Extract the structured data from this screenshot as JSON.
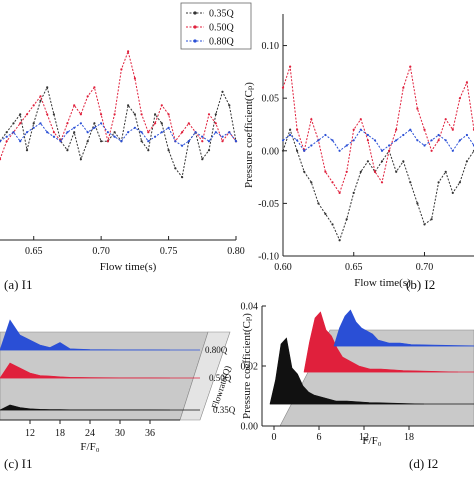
{
  "legend": {
    "items": [
      {
        "label": "0.35Q",
        "color": "#333333",
        "marker": "square"
      },
      {
        "label": "0.50Q",
        "color": "#e0203c",
        "marker": "circle"
      },
      {
        "label": "0.80Q",
        "color": "#2a4fd6",
        "marker": "triangle"
      }
    ]
  },
  "chart_data": [
    {
      "id": "I1",
      "type": "line",
      "caption": "(a) I1",
      "xlabel": "Flow time(s)",
      "ylabel": "",
      "xlim": [
        0.625,
        0.8
      ],
      "ylim": [
        -0.11,
        0.135
      ],
      "xticks": [
        "0.65",
        "0.70",
        "0.75",
        "0.80"
      ],
      "xtick_values": [
        0.65,
        0.7,
        0.75,
        0.8
      ],
      "series": [
        {
          "name": "0.35Q",
          "color": "#333333",
          "x": [
            0.625,
            0.63,
            0.635,
            0.64,
            0.645,
            0.65,
            0.655,
            0.66,
            0.665,
            0.67,
            0.675,
            0.68,
            0.685,
            0.69,
            0.695,
            0.7,
            0.705,
            0.71,
            0.715,
            0.72,
            0.725,
            0.73,
            0.735,
            0.74,
            0.745,
            0.75,
            0.755,
            0.76,
            0.765,
            0.77,
            0.775,
            0.78,
            0.785,
            0.79,
            0.795,
            0.8
          ],
          "y": [
            0.0,
            0.01,
            0.02,
            0.03,
            -0.01,
            0.02,
            0.045,
            0.06,
            0.03,
            0.0,
            -0.01,
            0.01,
            -0.02,
            0.0,
            0.02,
            0.0,
            0.0,
            0.01,
            0.0,
            0.04,
            0.03,
            0.0,
            -0.01,
            0.03,
            0.02,
            -0.01,
            -0.03,
            -0.04,
            0.0,
            0.01,
            -0.02,
            -0.01,
            0.03,
            0.055,
            0.04,
            0.0
          ]
        },
        {
          "name": "0.50Q",
          "color": "#e0203c",
          "x": [
            0.625,
            0.63,
            0.635,
            0.64,
            0.645,
            0.65,
            0.655,
            0.66,
            0.665,
            0.67,
            0.675,
            0.68,
            0.685,
            0.69,
            0.695,
            0.7,
            0.705,
            0.71,
            0.715,
            0.72,
            0.725,
            0.73,
            0.735,
            0.74,
            0.745,
            0.75,
            0.755,
            0.76,
            0.765,
            0.77,
            0.775,
            0.78,
            0.785,
            0.79,
            0.795,
            0.8
          ],
          "y": [
            -0.02,
            0.0,
            0.01,
            0.02,
            0.03,
            0.04,
            0.05,
            0.03,
            0.01,
            0.0,
            0.02,
            0.04,
            0.03,
            0.05,
            0.06,
            0.03,
            0.0,
            0.03,
            0.08,
            0.1,
            0.07,
            0.03,
            0.01,
            0.02,
            0.04,
            0.03,
            0.0,
            0.01,
            0.02,
            0.01,
            0.0,
            0.03,
            0.02,
            0.0,
            0.01,
            0.0
          ]
        },
        {
          "name": "0.80Q",
          "color": "#2a4fd6",
          "x": [
            0.625,
            0.63,
            0.635,
            0.64,
            0.645,
            0.65,
            0.655,
            0.66,
            0.665,
            0.67,
            0.675,
            0.68,
            0.685,
            0.69,
            0.695,
            0.7,
            0.705,
            0.71,
            0.715,
            0.72,
            0.725,
            0.73,
            0.735,
            0.74,
            0.745,
            0.75,
            0.755,
            0.76,
            0.765,
            0.77,
            0.775,
            0.78,
            0.785,
            0.79,
            0.795,
            0.8
          ],
          "y": [
            0.0,
            0.005,
            0.01,
            0.0,
            0.01,
            0.015,
            0.02,
            0.01,
            0.005,
            0.0,
            0.01,
            0.015,
            0.02,
            0.01,
            0.015,
            0.02,
            0.01,
            0.005,
            0.0,
            0.01,
            0.015,
            0.01,
            0.0,
            0.005,
            0.01,
            0.015,
            0.0,
            -0.005,
            0.0,
            0.01,
            0.005,
            0.0,
            0.01,
            0.005,
            0.01,
            0.0
          ]
        }
      ]
    },
    {
      "id": "I2",
      "type": "line",
      "caption": "(b) I2",
      "xlabel": "Flow time(s)",
      "ylabel": "Pressure coefficient(C_p)",
      "xlim": [
        0.6,
        0.735
      ],
      "ylim": [
        -0.1,
        0.13
      ],
      "xticks": [
        "0.60",
        "0.65",
        "0.70"
      ],
      "xtick_values": [
        0.6,
        0.65,
        0.7
      ],
      "yticks": [
        "-0.10",
        "-0.05",
        "0.00",
        "0.05",
        "0.10"
      ],
      "ytick_values": [
        -0.1,
        -0.05,
        0.0,
        0.05,
        0.1
      ],
      "series": [
        {
          "name": "0.35Q",
          "color": "#333333",
          "x": [
            0.6,
            0.605,
            0.61,
            0.615,
            0.62,
            0.625,
            0.63,
            0.635,
            0.64,
            0.645,
            0.65,
            0.655,
            0.66,
            0.665,
            0.67,
            0.675,
            0.68,
            0.685,
            0.69,
            0.695,
            0.7,
            0.705,
            0.71,
            0.715,
            0.72,
            0.725,
            0.73,
            0.735
          ],
          "y": [
            0.0,
            0.02,
            0.0,
            -0.02,
            -0.03,
            -0.05,
            -0.06,
            -0.07,
            -0.085,
            -0.065,
            -0.04,
            -0.02,
            -0.01,
            -0.02,
            -0.01,
            0.0,
            -0.02,
            -0.01,
            -0.03,
            -0.05,
            -0.07,
            -0.065,
            -0.03,
            -0.02,
            -0.04,
            -0.03,
            -0.01,
            0.0
          ]
        },
        {
          "name": "0.50Q",
          "color": "#e0203c",
          "x": [
            0.6,
            0.605,
            0.61,
            0.615,
            0.62,
            0.625,
            0.63,
            0.635,
            0.64,
            0.645,
            0.65,
            0.655,
            0.66,
            0.665,
            0.67,
            0.675,
            0.68,
            0.685,
            0.69,
            0.695,
            0.7,
            0.705,
            0.71,
            0.715,
            0.72,
            0.725,
            0.73,
            0.735
          ],
          "y": [
            0.06,
            0.08,
            0.02,
            0.0,
            0.03,
            0.01,
            -0.02,
            -0.03,
            -0.04,
            -0.02,
            0.02,
            0.03,
            0.01,
            -0.02,
            -0.03,
            0.0,
            0.02,
            0.06,
            0.08,
            0.04,
            0.02,
            0.0,
            0.01,
            0.03,
            0.02,
            0.05,
            0.065,
            0.02
          ]
        },
        {
          "name": "0.80Q",
          "color": "#2a4fd6",
          "x": [
            0.6,
            0.605,
            0.61,
            0.615,
            0.62,
            0.625,
            0.63,
            0.635,
            0.64,
            0.645,
            0.65,
            0.655,
            0.66,
            0.665,
            0.67,
            0.675,
            0.68,
            0.685,
            0.69,
            0.695,
            0.7,
            0.705,
            0.71,
            0.715,
            0.72,
            0.725,
            0.73,
            0.735
          ],
          "y": [
            0.01,
            0.015,
            0.01,
            0.0,
            0.005,
            0.01,
            0.015,
            0.01,
            0.0,
            0.005,
            0.01,
            0.02,
            0.015,
            0.01,
            0.0,
            0.005,
            0.01,
            0.015,
            0.02,
            0.01,
            0.005,
            0.01,
            0.015,
            0.01,
            0.0,
            0.01,
            0.015,
            0.005
          ]
        }
      ]
    },
    {
      "id": "I1-spectrum",
      "type": "area",
      "caption": "(c) I1",
      "xlabel": "F/F_0",
      "zlabel": "Flowrate(Q)",
      "xlim": [
        8,
        40
      ],
      "xticks": [
        "12",
        "18",
        "24",
        "30",
        "36"
      ],
      "xtick_values": [
        12,
        18,
        24,
        30,
        36
      ],
      "series": [
        {
          "name": "0.35Q",
          "color": "#111111",
          "x": [
            8,
            10,
            12,
            14,
            16,
            18,
            20,
            24,
            30,
            36,
            40
          ],
          "y": [
            0.002,
            0.001,
            0.0005,
            0.0003,
            0.0002,
            0.0002,
            0.0001,
            0.0001,
            0.0001,
            0.0001,
            0.0
          ]
        },
        {
          "name": "0.50Q",
          "color": "#e0203c",
          "x": [
            8,
            10,
            12,
            14,
            16,
            18,
            20,
            24,
            30,
            36,
            40
          ],
          "y": [
            0.006,
            0.004,
            0.002,
            0.001,
            0.0008,
            0.0005,
            0.0003,
            0.0002,
            0.0001,
            0.0001,
            0.0
          ]
        },
        {
          "name": "0.80Q",
          "color": "#2a4fd6",
          "x": [
            8,
            10,
            12,
            14,
            16,
            18,
            20,
            24,
            30,
            36,
            40
          ],
          "y": [
            0.012,
            0.006,
            0.004,
            0.002,
            0.001,
            0.003,
            0.0005,
            0.0002,
            0.0001,
            0.0001,
            0.0
          ]
        }
      ],
      "zticks": [
        "0.35Q",
        "0.50Q",
        "0.80Q"
      ]
    },
    {
      "id": "I2-spectrum",
      "type": "area",
      "caption": "(d) I2",
      "xlabel": "F/F_0",
      "ylabel": "Pressure coefficient(C_p)",
      "ylim": [
        0.0,
        0.04
      ],
      "yticks": [
        "0.00",
        "0.02",
        "0.04"
      ],
      "ytick_values": [
        0.0,
        0.02,
        0.04
      ],
      "xlim": [
        0,
        28
      ],
      "xticks": [
        "0",
        "6",
        "12",
        "18"
      ],
      "xtick_values": [
        0,
        6,
        12,
        18
      ],
      "series": [
        {
          "name": "0.35Q",
          "color": "#111111",
          "x": [
            0,
            1,
            2,
            3,
            4,
            5,
            6,
            7,
            8,
            10,
            12,
            14,
            18,
            24,
            28
          ],
          "y": [
            0.0,
            0.008,
            0.02,
            0.022,
            0.012,
            0.01,
            0.006,
            0.004,
            0.003,
            0.002,
            0.001,
            0.001,
            0.0005,
            0.0002,
            0.0
          ]
        },
        {
          "name": "0.50Q",
          "color": "#e0203c",
          "x": [
            0,
            1,
            2,
            3,
            4,
            5,
            6,
            7,
            8,
            10,
            12,
            14,
            18,
            24,
            28
          ],
          "y": [
            0.0,
            0.01,
            0.018,
            0.02,
            0.014,
            0.012,
            0.008,
            0.005,
            0.004,
            0.002,
            0.001,
            0.001,
            0.0005,
            0.0002,
            0.0
          ]
        },
        {
          "name": "0.80Q",
          "color": "#2a4fd6",
          "x": [
            0,
            1,
            2,
            3,
            4,
            5,
            6,
            7,
            8,
            10,
            12,
            14,
            18,
            24,
            28
          ],
          "y": [
            0.0,
            0.006,
            0.01,
            0.012,
            0.008,
            0.006,
            0.005,
            0.004,
            0.002,
            0.001,
            0.001,
            0.0005,
            0.0003,
            0.0001,
            0.0
          ]
        }
      ]
    }
  ]
}
